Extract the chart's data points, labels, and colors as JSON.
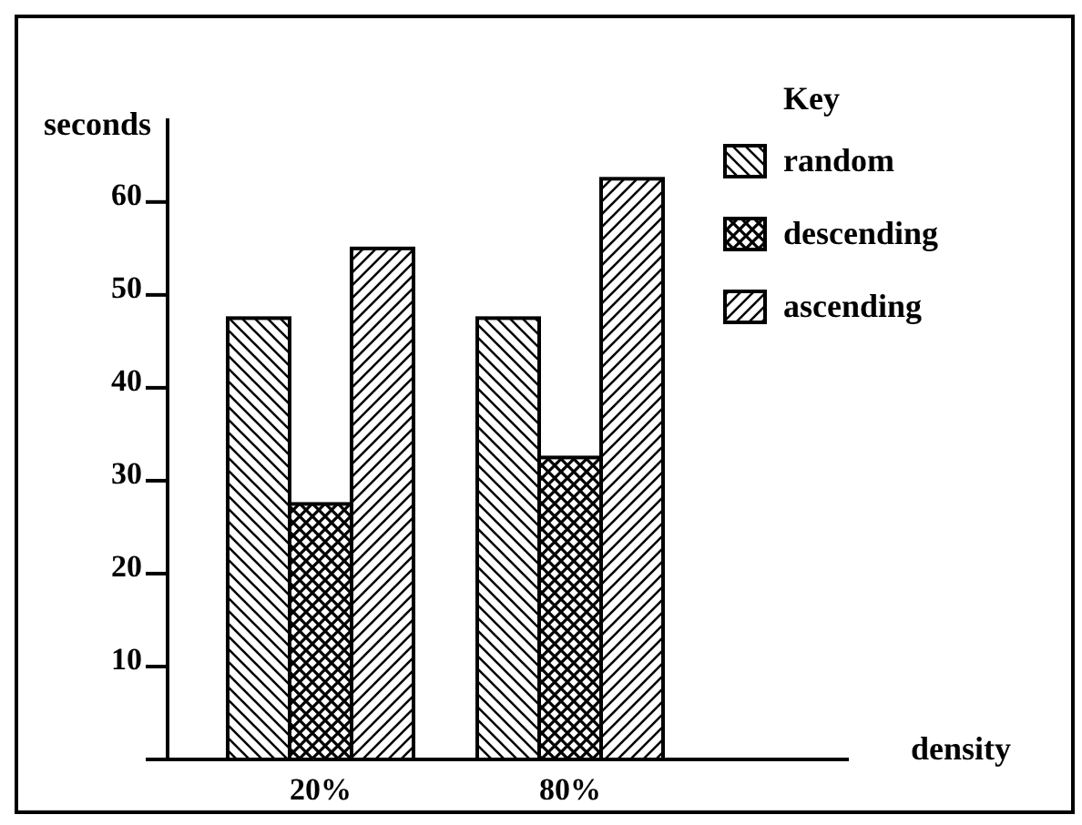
{
  "chart_data": {
    "type": "bar",
    "categories": [
      "20%",
      "80%"
    ],
    "ylabel": "seconds",
    "xlabel": "density",
    "legend_title": "Key",
    "legend": "top right",
    "series": [
      {
        "name": "random",
        "color": "#000000",
        "values": [
          47.5,
          47.5
        ]
      },
      {
        "name": "descending",
        "color": "#000000",
        "values": [
          27.5,
          32.5
        ]
      },
      {
        "name": "ascending",
        "color": "#000000",
        "values": [
          55,
          62.5
        ]
      }
    ],
    "ylim": [
      0,
      69
    ],
    "yticks": [
      {
        "value": 0,
        "label": null
      },
      10,
      20,
      30,
      40,
      50,
      60
    ]
  }
}
